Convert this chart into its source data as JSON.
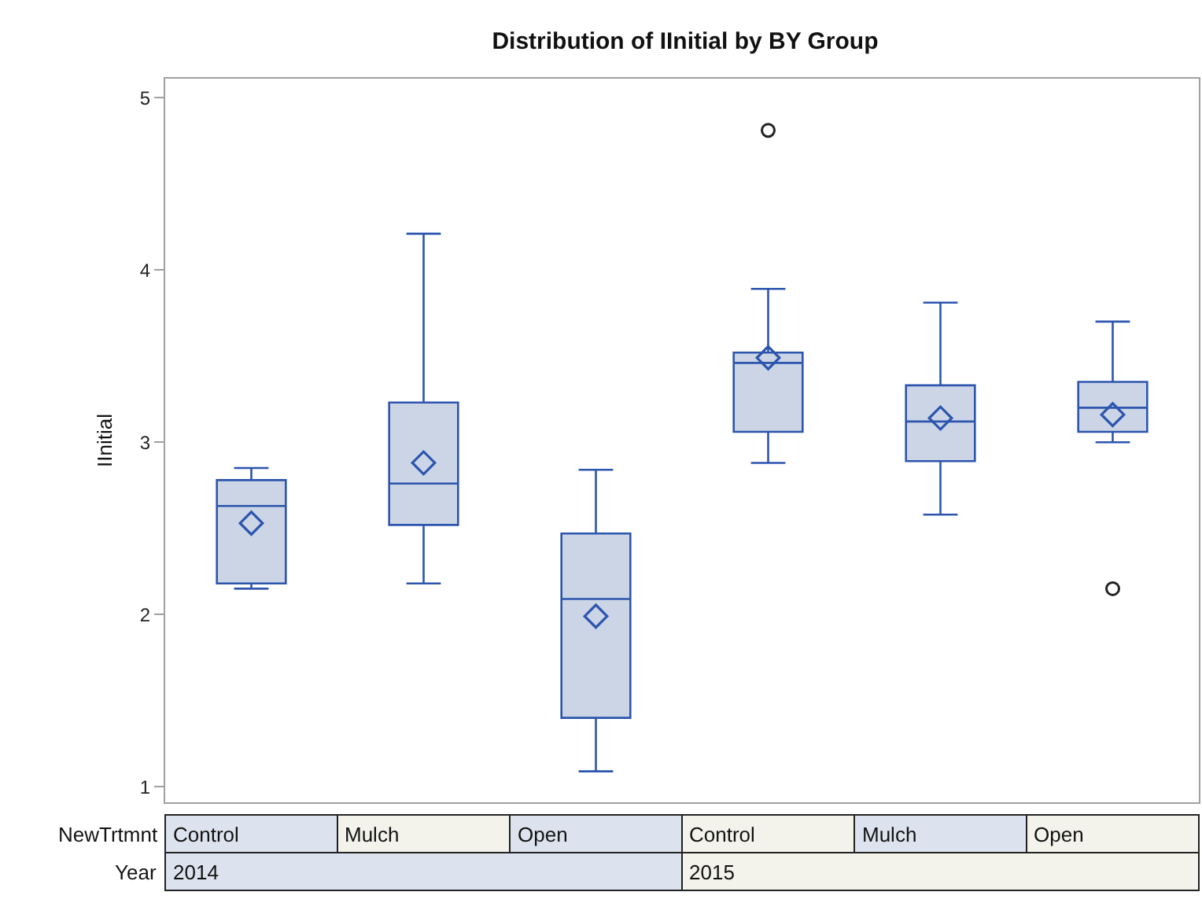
{
  "chart_data": {
    "type": "box",
    "title": "Distribution of IInitial by BY Group",
    "xlabel": "NewTrtmnt",
    "ylabel": "IInitial",
    "categories": [
      "Control",
      "Mulch",
      "Open",
      "Control",
      "Mulch",
      "Open"
    ],
    "annotations": [
      "Year",
      "2014",
      "2015"
    ],
    "color": "#cbd5e6",
    "boxes": [
      {
        "low": 2.15,
        "q1": 2.18,
        "median": 2.63,
        "q3": 2.78,
        "high": 2.85,
        "mean": 2.53
      },
      {
        "low": 2.18,
        "q1": 2.52,
        "median": 2.76,
        "q3": 3.23,
        "high": 4.21,
        "mean": 2.88
      },
      {
        "low": 1.09,
        "q1": 1.4,
        "median": 2.09,
        "q3": 2.47,
        "high": 2.84,
        "mean": 1.99
      },
      {
        "low": 2.88,
        "q1": 3.06,
        "median": 3.46,
        "q3": 3.52,
        "high": 3.89,
        "mean": 3.49,
        "outliers": [
          4.81
        ]
      },
      {
        "low": 2.58,
        "q1": 2.89,
        "median": 3.12,
        "q3": 3.33,
        "high": 3.81,
        "mean": 3.14
      },
      {
        "low": 3.0,
        "q1": 3.06,
        "median": 3.2,
        "q3": 3.35,
        "high": 3.7,
        "mean": 3.16,
        "outliers": [
          2.15
        ]
      }
    ],
    "ylim": [
      0.91,
      5.11
    ],
    "yticks": [
      1,
      2,
      3,
      4,
      5
    ],
    "grid": false
  }
}
